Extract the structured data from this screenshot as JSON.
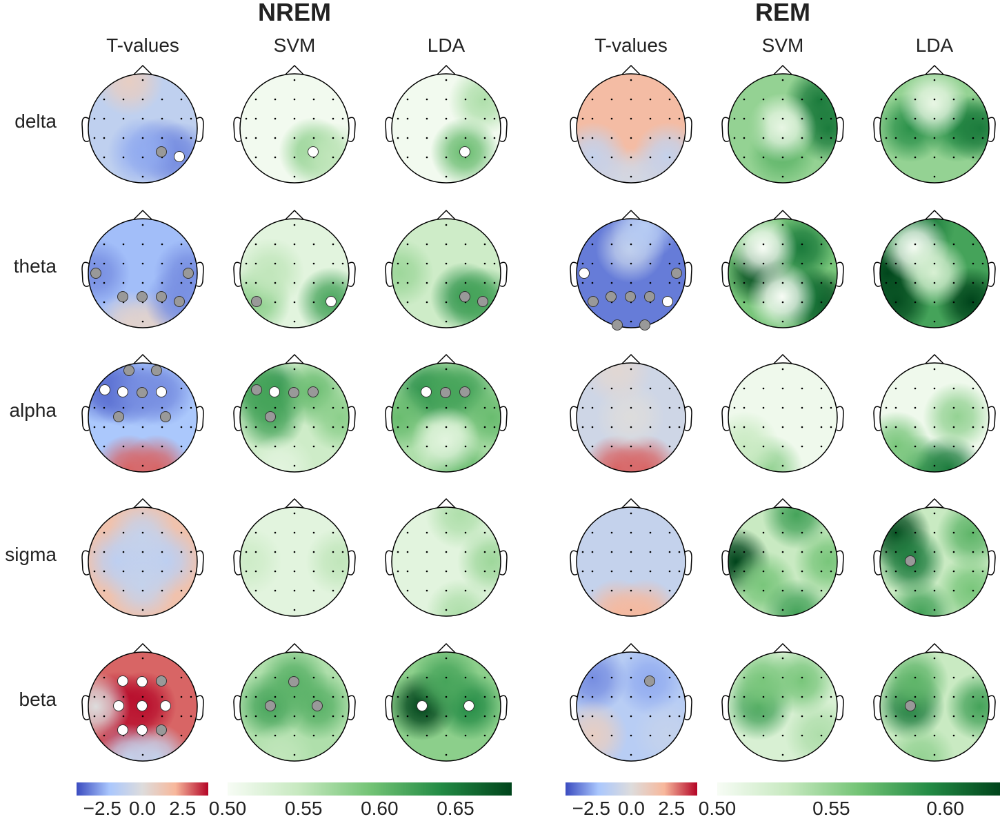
{
  "figure": {
    "groups": [
      {
        "title": "NREM",
        "columns": [
          "T-values",
          "SVM",
          "LDA"
        ]
      },
      {
        "title": "REM",
        "columns": [
          "T-values",
          "SVM",
          "LDA"
        ]
      }
    ],
    "rows": [
      "delta",
      "theta",
      "alpha",
      "sigma",
      "beta"
    ]
  },
  "colors": {
    "tvalue_cmap": [
      "#3b4cc0",
      "#aac7fd",
      "#dddcdc",
      "#f7b89c",
      "#b40426"
    ],
    "score_cmap": [
      "#f7fcf5",
      "#c7e9c0",
      "#74c476",
      "#238b45",
      "#00441b"
    ],
    "marker_significant": "#ffffff",
    "marker_trend": "#999999"
  },
  "colorbars": [
    {
      "group": "NREM",
      "type": "tvalue",
      "range": [
        -4.1,
        4.1
      ],
      "ticks": [
        "−2.5",
        "0.0",
        "2.5"
      ],
      "tick_values": [
        -2.5,
        0,
        2.5
      ]
    },
    {
      "group": "NREM",
      "type": "score",
      "range": [
        0.5,
        0.687
      ],
      "ticks": [
        "0.50",
        "0.55",
        "0.60",
        "0.65"
      ],
      "tick_values": [
        0.5,
        0.55,
        0.6,
        0.65
      ]
    },
    {
      "group": "REM",
      "type": "tvalue",
      "range": [
        -4.1,
        4.1
      ],
      "ticks": [
        "−2.5",
        "0.0",
        "2.5"
      ],
      "tick_values": [
        -2.5,
        0,
        2.5
      ]
    },
    {
      "group": "REM",
      "type": "score",
      "range": [
        0.5,
        0.624
      ],
      "ticks": [
        "0.50",
        "0.55",
        "0.60"
      ],
      "tick_values": [
        0.5,
        0.55,
        0.6
      ]
    }
  ],
  "chart_data": [
    {
      "type": "heatmap",
      "group": "NREM",
      "band": "delta",
      "method": "T-values",
      "base": -1.2,
      "peaks": [
        [
          15,
          -3
        ],
        [
          16,
          -3
        ],
        [
          14,
          -2.5
        ],
        [
          0,
          0.8
        ]
      ],
      "markers": [
        [
          15,
          "gray"
        ],
        [
          16,
          "white"
        ]
      ]
    },
    {
      "type": "heatmap",
      "group": "NREM",
      "band": "delta",
      "method": "SVM",
      "base": 0.505,
      "peaks": [
        [
          15,
          0.58
        ],
        [
          16,
          0.55
        ]
      ],
      "markers": [
        [
          15,
          "white"
        ]
      ]
    },
    {
      "type": "heatmap",
      "group": "NREM",
      "band": "delta",
      "method": "LDA",
      "base": 0.505,
      "peaks": [
        [
          15,
          0.6
        ],
        [
          6,
          0.56
        ]
      ],
      "markers": [
        [
          15,
          "white"
        ]
      ]
    },
    {
      "type": "heatmap",
      "group": "NREM",
      "band": "theta",
      "method": "T-values",
      "base": -2.2,
      "peaks": [
        [
          17,
          0.5
        ],
        [
          18,
          0.5
        ],
        [
          7,
          -3
        ],
        [
          11,
          -3
        ],
        [
          16,
          -3
        ]
      ],
      "markers": [
        [
          7,
          "gray"
        ],
        [
          11,
          "gray"
        ],
        [
          13,
          "gray"
        ],
        [
          14,
          "gray"
        ],
        [
          15,
          "gray"
        ],
        [
          16,
          "gray"
        ]
      ]
    },
    {
      "type": "heatmap",
      "group": "NREM",
      "band": "theta",
      "method": "SVM",
      "base": 0.52,
      "peaks": [
        [
          16,
          0.62
        ],
        [
          12,
          0.58
        ],
        [
          8,
          0.55
        ]
      ],
      "markers": [
        [
          12,
          "gray"
        ],
        [
          16,
          "white"
        ]
      ]
    },
    {
      "type": "heatmap",
      "group": "NREM",
      "band": "theta",
      "method": "LDA",
      "base": 0.54,
      "peaks": [
        [
          15,
          0.63
        ],
        [
          16,
          0.62
        ],
        [
          7,
          0.57
        ]
      ],
      "markers": [
        [
          15,
          "gray"
        ],
        [
          16,
          "gray"
        ]
      ]
    },
    {
      "type": "heatmap",
      "group": "NREM",
      "band": "alpha",
      "method": "T-values",
      "base": -2.0,
      "peaks": [
        [
          17,
          3
        ],
        [
          18,
          3
        ],
        [
          2,
          -3.5
        ],
        [
          3,
          -3.5
        ],
        [
          4,
          -3
        ],
        [
          5,
          -3
        ]
      ],
      "markers": [
        [
          0,
          "gray"
        ],
        [
          1,
          "gray"
        ],
        [
          2,
          "white"
        ],
        [
          3,
          "white"
        ],
        [
          4,
          "gray"
        ],
        [
          5,
          "white"
        ],
        [
          8,
          "gray"
        ],
        [
          10,
          "gray"
        ]
      ]
    },
    {
      "type": "heatmap",
      "group": "NREM",
      "band": "alpha",
      "method": "SVM",
      "base": 0.54,
      "peaks": [
        [
          3,
          0.64
        ],
        [
          2,
          0.62
        ],
        [
          8,
          0.62
        ],
        [
          5,
          0.6
        ],
        [
          11,
          0.58
        ],
        [
          17,
          0.52
        ]
      ],
      "markers": [
        [
          2,
          "gray"
        ],
        [
          3,
          "white"
        ],
        [
          4,
          "gray"
        ],
        [
          5,
          "gray"
        ],
        [
          8,
          "gray"
        ]
      ]
    },
    {
      "type": "heatmap",
      "group": "NREM",
      "band": "alpha",
      "method": "LDA",
      "base": 0.56,
      "peaks": [
        [
          3,
          0.64
        ],
        [
          4,
          0.62
        ],
        [
          5,
          0.62
        ],
        [
          7,
          0.6
        ],
        [
          11,
          0.6
        ],
        [
          18,
          0.6
        ],
        [
          14,
          0.52
        ]
      ],
      "markers": [
        [
          3,
          "white"
        ],
        [
          4,
          "gray"
        ],
        [
          5,
          "gray"
        ]
      ]
    },
    {
      "type": "heatmap",
      "group": "NREM",
      "band": "sigma",
      "method": "T-values",
      "base": 1.5,
      "peaks": [
        [
          9,
          -1.5
        ],
        [
          8,
          -1.3
        ],
        [
          10,
          -1.3
        ],
        [
          4,
          -1
        ],
        [
          14,
          -1
        ]
      ],
      "markers": []
    },
    {
      "type": "heatmap",
      "group": "NREM",
      "band": "sigma",
      "method": "SVM",
      "base": 0.52,
      "peaks": [
        [
          11,
          0.55
        ],
        [
          7,
          0.54
        ]
      ],
      "markers": []
    },
    {
      "type": "heatmap",
      "group": "NREM",
      "band": "sigma",
      "method": "LDA",
      "base": 0.52,
      "peaks": [
        [
          11,
          0.57
        ],
        [
          1,
          0.56
        ],
        [
          18,
          0.56
        ]
      ],
      "markers": []
    },
    {
      "type": "heatmap",
      "group": "NREM",
      "band": "beta",
      "method": "T-values",
      "base": 3,
      "peaks": [
        [
          9,
          4
        ],
        [
          8,
          4
        ],
        [
          13,
          3.8
        ],
        [
          17,
          -1
        ],
        [
          18,
          -1
        ],
        [
          7,
          0
        ]
      ],
      "markers": [
        [
          3,
          "white"
        ],
        [
          4,
          "white"
        ],
        [
          5,
          "gray"
        ],
        [
          8,
          "white"
        ],
        [
          9,
          "white"
        ],
        [
          10,
          "white"
        ],
        [
          13,
          "white"
        ],
        [
          14,
          "white"
        ],
        [
          15,
          "gray"
        ]
      ]
    },
    {
      "type": "heatmap",
      "group": "NREM",
      "band": "beta",
      "method": "SVM",
      "base": 0.56,
      "peaks": [
        [
          8,
          0.62
        ],
        [
          10,
          0.61
        ],
        [
          4,
          0.61
        ],
        [
          17,
          0.55
        ]
      ],
      "markers": [
        [
          4,
          "gray"
        ],
        [
          8,
          "gray"
        ],
        [
          10,
          "gray"
        ]
      ]
    },
    {
      "type": "heatmap",
      "group": "NREM",
      "band": "beta",
      "method": "LDA",
      "base": 0.58,
      "peaks": [
        [
          8,
          0.69
        ],
        [
          10,
          0.64
        ],
        [
          4,
          0.62
        ]
      ],
      "markers": [
        [
          8,
          "white"
        ],
        [
          10,
          "white"
        ]
      ]
    },
    {
      "type": "heatmap",
      "group": "REM",
      "band": "delta",
      "method": "T-values",
      "base": 1.8,
      "peaks": [
        [
          17,
          -0.5
        ],
        [
          18,
          -0.5
        ],
        [
          12,
          -1
        ],
        [
          16,
          -1
        ]
      ],
      "markers": []
    },
    {
      "type": "heatmap",
      "group": "REM",
      "band": "delta",
      "method": "SVM",
      "base": 0.55,
      "peaks": [
        [
          6,
          0.6
        ],
        [
          11,
          0.6
        ],
        [
          14,
          0.57
        ],
        [
          9,
          0.51
        ],
        [
          7,
          0.55
        ]
      ],
      "markers": []
    },
    {
      "type": "heatmap",
      "group": "REM",
      "band": "delta",
      "method": "LDA",
      "base": 0.55,
      "peaks": [
        [
          8,
          0.59
        ],
        [
          10,
          0.59
        ],
        [
          11,
          0.6
        ],
        [
          4,
          0.51
        ]
      ],
      "markers": []
    },
    {
      "type": "heatmap",
      "group": "REM",
      "band": "theta",
      "method": "T-values",
      "base": -3.3,
      "peaks": [
        [
          4,
          -1
        ],
        [
          1,
          -1.5
        ]
      ],
      "markers": [
        [
          7,
          "white"
        ],
        [
          11,
          "gray"
        ],
        [
          12,
          "gray"
        ],
        [
          13,
          "gray"
        ],
        [
          14,
          "gray"
        ],
        [
          15,
          "gray"
        ],
        [
          16,
          "white"
        ],
        [
          17,
          "gray"
        ],
        [
          18,
          "gray"
        ]
      ]
    },
    {
      "type": "heatmap",
      "group": "REM",
      "band": "theta",
      "method": "SVM",
      "base": 0.56,
      "peaks": [
        [
          8,
          0.62
        ],
        [
          16,
          0.62
        ],
        [
          15,
          0.6
        ],
        [
          5,
          0.6
        ],
        [
          3,
          0.5
        ],
        [
          14,
          0.5
        ]
      ],
      "markers": []
    },
    {
      "type": "heatmap",
      "group": "REM",
      "band": "theta",
      "method": "LDA",
      "base": 0.58,
      "peaks": [
        [
          7,
          0.63
        ],
        [
          16,
          0.63
        ],
        [
          12,
          0.62
        ],
        [
          0,
          0.6
        ],
        [
          3,
          0.5
        ],
        [
          9,
          0.52
        ]
      ],
      "markers": []
    },
    {
      "type": "heatmap",
      "group": "REM",
      "band": "alpha",
      "method": "T-values",
      "base": -0.6,
      "peaks": [
        [
          17,
          3
        ],
        [
          18,
          3
        ],
        [
          9,
          0
        ],
        [
          0,
          0.3
        ]
      ],
      "markers": []
    },
    {
      "type": "heatmap",
      "group": "REM",
      "band": "alpha",
      "method": "SVM",
      "base": 0.505,
      "peaks": [
        [
          17,
          0.55
        ],
        [
          12,
          0.53
        ]
      ],
      "markers": []
    },
    {
      "type": "heatmap",
      "group": "REM",
      "band": "alpha",
      "method": "LDA",
      "base": 0.505,
      "peaks": [
        [
          17,
          0.58
        ],
        [
          18,
          0.6
        ],
        [
          12,
          0.56
        ],
        [
          10,
          0.55
        ]
      ],
      "markers": []
    },
    {
      "type": "heatmap",
      "group": "REM",
      "band": "sigma",
      "method": "T-values",
      "base": -1.0,
      "peaks": [
        [
          17,
          2
        ],
        [
          18,
          2
        ]
      ],
      "markers": []
    },
    {
      "type": "heatmap",
      "group": "REM",
      "band": "sigma",
      "method": "SVM",
      "base": 0.53,
      "peaks": [
        [
          7,
          0.63
        ],
        [
          1,
          0.58
        ],
        [
          11,
          0.56
        ],
        [
          13,
          0.56
        ],
        [
          18,
          0.58
        ]
      ],
      "markers": []
    },
    {
      "type": "heatmap",
      "group": "REM",
      "band": "sigma",
      "method": "LDA",
      "base": 0.53,
      "peaks": [
        [
          2,
          0.62
        ],
        [
          8,
          0.6
        ],
        [
          6,
          0.57
        ],
        [
          17,
          0.58
        ],
        [
          16,
          0.56
        ]
      ],
      "markers": [
        [
          8,
          "gray"
        ]
      ]
    },
    {
      "type": "heatmap",
      "group": "REM",
      "band": "beta",
      "method": "T-values",
      "base": -1.5,
      "peaks": [
        [
          2,
          -3
        ],
        [
          5,
          -2.5
        ],
        [
          12,
          0.8
        ],
        [
          16,
          -1
        ]
      ],
      "markers": [
        [
          5,
          "gray"
        ]
      ]
    },
    {
      "type": "heatmap",
      "group": "REM",
      "band": "beta",
      "method": "SVM",
      "base": 0.52,
      "peaks": [
        [
          8,
          0.58
        ],
        [
          5,
          0.56
        ],
        [
          3,
          0.56
        ],
        [
          16,
          0.54
        ]
      ],
      "markers": []
    },
    {
      "type": "heatmap",
      "group": "REM",
      "band": "beta",
      "method": "LDA",
      "base": 0.53,
      "peaks": [
        [
          8,
          0.6
        ],
        [
          11,
          0.58
        ],
        [
          3,
          0.57
        ],
        [
          17,
          0.55
        ]
      ],
      "markers": [
        [
          8,
          "gray"
        ]
      ]
    }
  ]
}
